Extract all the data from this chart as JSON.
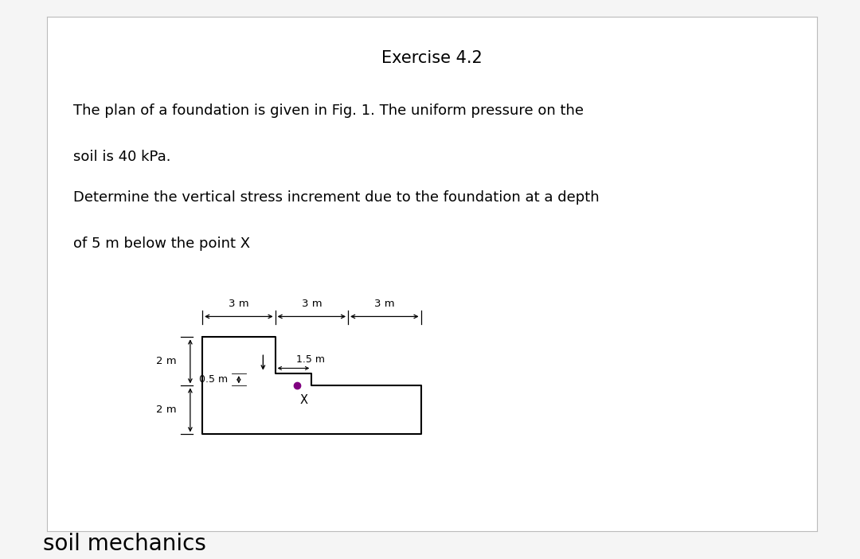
{
  "title": "Exercise 4.2",
  "desc_lines": [
    "The plan of a foundation is given in Fig. 1. The uniform pressure on the",
    "soil is 40 kPa.",
    "Determine the vertical stress increment due to the foundation at a depth",
    "of 5 m below the point X"
  ],
  "footer": "soil mechanics",
  "bg_color": "#f5f5f5",
  "card_bg": "#ffffff",
  "header_bg": "#e0e0e0",
  "point_color": "#800080",
  "dim_3m_labels": [
    "3 m",
    "3 m",
    "3 m"
  ],
  "dim_2m_labels": [
    "2 m",
    "2 m"
  ],
  "dim_15m_label": "1.5 m",
  "dim_05m_label": "0.5 m",
  "point_label": "X"
}
